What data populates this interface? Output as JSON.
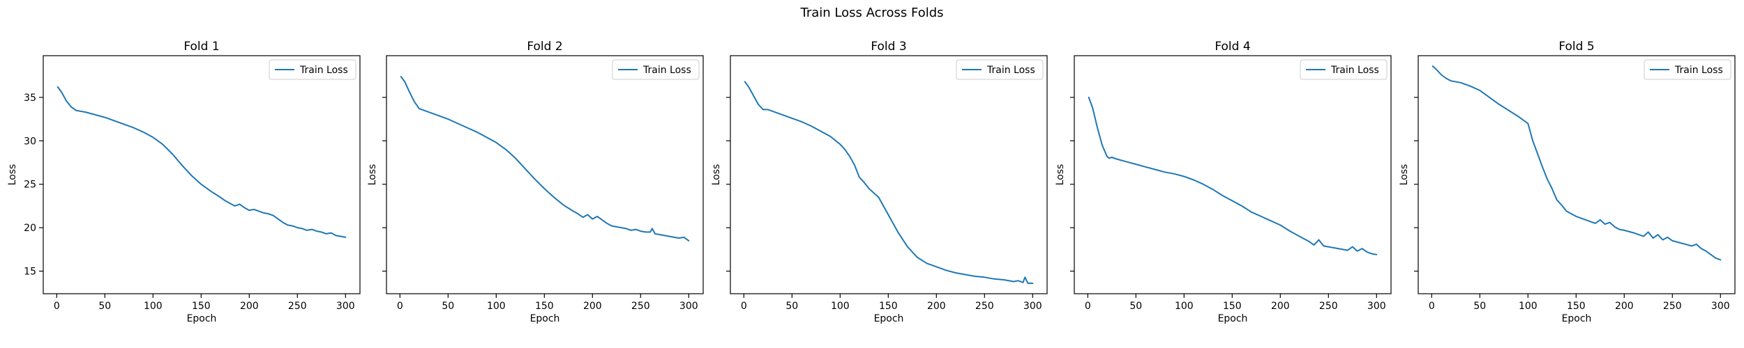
{
  "figure": {
    "suptitle": "Train Loss Across Folds"
  },
  "colors": {
    "series": "#1f77b4",
    "axes": "#000000"
  },
  "chart_data": [
    {
      "type": "line",
      "title": "Fold 1",
      "xlabel": "Epoch",
      "ylabel": "Loss",
      "xlim": [
        -14,
        315
      ],
      "ylim": [
        12.4,
        39.8
      ],
      "xticks": [
        0,
        50,
        100,
        150,
        200,
        250,
        300
      ],
      "yticks": [
        15,
        20,
        25,
        30,
        35
      ],
      "grid": false,
      "legend": "top-right",
      "series": [
        {
          "name": "Train Loss",
          "x": [
            1,
            5,
            10,
            15,
            20,
            25,
            30,
            40,
            50,
            60,
            70,
            80,
            90,
            100,
            110,
            120,
            130,
            140,
            150,
            160,
            170,
            175,
            180,
            185,
            190,
            195,
            200,
            205,
            210,
            215,
            220,
            225,
            230,
            235,
            240,
            245,
            250,
            255,
            260,
            265,
            270,
            275,
            280,
            285,
            290,
            295,
            300
          ],
          "y": [
            36.2,
            35.6,
            34.6,
            33.9,
            33.5,
            33.4,
            33.3,
            33.0,
            32.7,
            32.3,
            31.9,
            31.5,
            31.0,
            30.4,
            29.6,
            28.5,
            27.2,
            26.0,
            25.0,
            24.2,
            23.5,
            23.1,
            22.8,
            22.5,
            22.7,
            22.3,
            22.0,
            22.1,
            21.9,
            21.7,
            21.6,
            21.4,
            21.0,
            20.6,
            20.3,
            20.2,
            20.0,
            19.9,
            19.7,
            19.8,
            19.6,
            19.5,
            19.3,
            19.4,
            19.1,
            19.0,
            18.9
          ]
        }
      ]
    },
    {
      "type": "line",
      "title": "Fold 2",
      "xlabel": "Epoch",
      "ylabel": "Loss",
      "xlim": [
        -14,
        315
      ],
      "ylim": [
        12.4,
        39.8
      ],
      "xticks": [
        0,
        50,
        100,
        150,
        200,
        250,
        300
      ],
      "yticks": [
        15,
        20,
        25,
        30,
        35
      ],
      "grid": false,
      "legend": "top-right",
      "series": [
        {
          "name": "Train Loss",
          "x": [
            1,
            5,
            10,
            15,
            20,
            25,
            30,
            40,
            50,
            60,
            70,
            80,
            90,
            100,
            110,
            120,
            130,
            140,
            150,
            160,
            170,
            180,
            185,
            190,
            195,
            200,
            205,
            210,
            215,
            220,
            225,
            230,
            235,
            240,
            245,
            250,
            255,
            260,
            262,
            265,
            270,
            275,
            280,
            285,
            290,
            295,
            300
          ],
          "y": [
            37.4,
            36.8,
            35.6,
            34.5,
            33.7,
            33.5,
            33.3,
            32.9,
            32.5,
            32.0,
            31.5,
            31.0,
            30.4,
            29.8,
            29.0,
            28.0,
            26.8,
            25.6,
            24.5,
            23.5,
            22.6,
            21.9,
            21.6,
            21.2,
            21.5,
            21.0,
            21.3,
            20.9,
            20.5,
            20.2,
            20.1,
            20.0,
            19.9,
            19.7,
            19.8,
            19.6,
            19.5,
            19.5,
            19.9,
            19.3,
            19.2,
            19.1,
            19.0,
            18.9,
            18.8,
            18.9,
            18.5
          ]
        }
      ]
    },
    {
      "type": "line",
      "title": "Fold 3",
      "xlabel": "Epoch",
      "ylabel": "Loss",
      "xlim": [
        -14,
        315
      ],
      "ylim": [
        12.4,
        39.8
      ],
      "xticks": [
        0,
        50,
        100,
        150,
        200,
        250,
        300
      ],
      "yticks": [
        15,
        20,
        25,
        30,
        35
      ],
      "grid": false,
      "legend": "top-right",
      "series": [
        {
          "name": "Train Loss",
          "x": [
            1,
            5,
            10,
            15,
            20,
            25,
            30,
            40,
            50,
            60,
            70,
            80,
            90,
            100,
            105,
            110,
            115,
            120,
            125,
            130,
            140,
            150,
            160,
            170,
            180,
            190,
            200,
            210,
            220,
            230,
            240,
            250,
            260,
            270,
            280,
            285,
            290,
            292,
            295,
            300
          ],
          "y": [
            36.8,
            36.2,
            35.2,
            34.2,
            33.6,
            33.6,
            33.4,
            33.0,
            32.6,
            32.2,
            31.7,
            31.1,
            30.5,
            29.6,
            29.0,
            28.2,
            27.2,
            25.8,
            25.2,
            24.5,
            23.5,
            21.5,
            19.5,
            17.8,
            16.6,
            15.9,
            15.5,
            15.1,
            14.8,
            14.6,
            14.4,
            14.3,
            14.1,
            14.0,
            13.8,
            13.9,
            13.7,
            14.3,
            13.6,
            13.6
          ]
        }
      ]
    },
    {
      "type": "line",
      "title": "Fold 4",
      "xlabel": "Epoch",
      "ylabel": "Loss",
      "xlim": [
        -14,
        315
      ],
      "ylim": [
        12.4,
        39.8
      ],
      "xticks": [
        0,
        50,
        100,
        150,
        200,
        250,
        300
      ],
      "yticks": [
        15,
        20,
        25,
        30,
        35
      ],
      "grid": false,
      "legend": "top-right",
      "series": [
        {
          "name": "Train Loss",
          "x": [
            1,
            5,
            10,
            15,
            20,
            22,
            25,
            30,
            40,
            50,
            60,
            70,
            80,
            90,
            100,
            110,
            120,
            130,
            140,
            150,
            160,
            170,
            180,
            190,
            200,
            210,
            220,
            230,
            235,
            240,
            245,
            250,
            260,
            270,
            275,
            280,
            285,
            290,
            295,
            300
          ],
          "y": [
            35.0,
            33.8,
            31.5,
            29.5,
            28.2,
            28.0,
            28.1,
            27.9,
            27.6,
            27.3,
            27.0,
            26.7,
            26.4,
            26.2,
            25.9,
            25.5,
            25.0,
            24.4,
            23.7,
            23.1,
            22.5,
            21.8,
            21.3,
            20.8,
            20.3,
            19.6,
            19.0,
            18.4,
            18.0,
            18.6,
            17.9,
            17.8,
            17.6,
            17.4,
            17.8,
            17.3,
            17.6,
            17.2,
            17.0,
            16.9
          ]
        }
      ]
    },
    {
      "type": "line",
      "title": "Fold 5",
      "xlabel": "Epoch",
      "ylabel": "Loss",
      "xlim": [
        -14,
        315
      ],
      "ylim": [
        12.4,
        39.8
      ],
      "xticks": [
        0,
        50,
        100,
        150,
        200,
        250,
        300
      ],
      "yticks": [
        15,
        20,
        25,
        30,
        35
      ],
      "grid": false,
      "legend": "top-right",
      "series": [
        {
          "name": "Train Loss",
          "x": [
            1,
            5,
            10,
            15,
            20,
            30,
            40,
            50,
            60,
            70,
            80,
            90,
            100,
            105,
            110,
            115,
            120,
            125,
            130,
            135,
            140,
            150,
            160,
            170,
            175,
            180,
            185,
            190,
            195,
            200,
            210,
            220,
            225,
            230,
            235,
            240,
            245,
            250,
            260,
            270,
            275,
            280,
            285,
            290,
            295,
            300
          ],
          "y": [
            38.6,
            38.2,
            37.6,
            37.2,
            36.9,
            36.7,
            36.3,
            35.8,
            35.0,
            34.2,
            33.5,
            32.8,
            32.0,
            30.0,
            28.5,
            27.0,
            25.6,
            24.5,
            23.2,
            22.6,
            21.9,
            21.3,
            20.9,
            20.5,
            20.9,
            20.4,
            20.6,
            20.1,
            19.8,
            19.7,
            19.4,
            19.0,
            19.5,
            18.8,
            19.2,
            18.6,
            18.9,
            18.5,
            18.2,
            17.9,
            18.1,
            17.6,
            17.3,
            16.9,
            16.5,
            16.3
          ]
        }
      ]
    }
  ]
}
